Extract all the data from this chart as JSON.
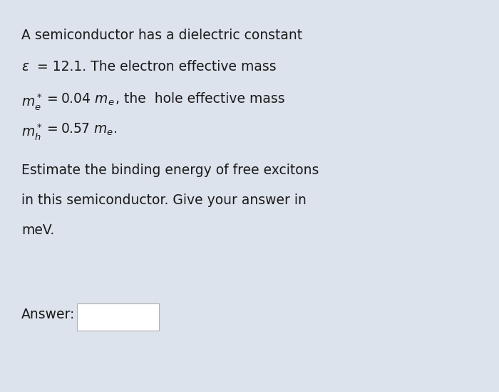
{
  "background_color": "#dde3ec",
  "text_color": "#1a1a1a",
  "answer_box_color": "#ffffff",
  "answer_box_border": "#b0b0b0",
  "fig_width": 7.0,
  "fig_height": 5.49,
  "line1": "A semiconductor has a dielectric constant",
  "line2_rest": " = 12.1. The electron effective mass",
  "line3_rest": " = 0.04 ",
  "line3_tail": ", the  hole effective mass",
  "line4_rest": " = 0.57 ",
  "line4_tail": ".",
  "line5": "Estimate the binding energy of free excitons",
  "line6": "in this semiconductor. Give your answer in",
  "line7": "meV.",
  "answer_label": "Answer:",
  "font_size": 13.5
}
